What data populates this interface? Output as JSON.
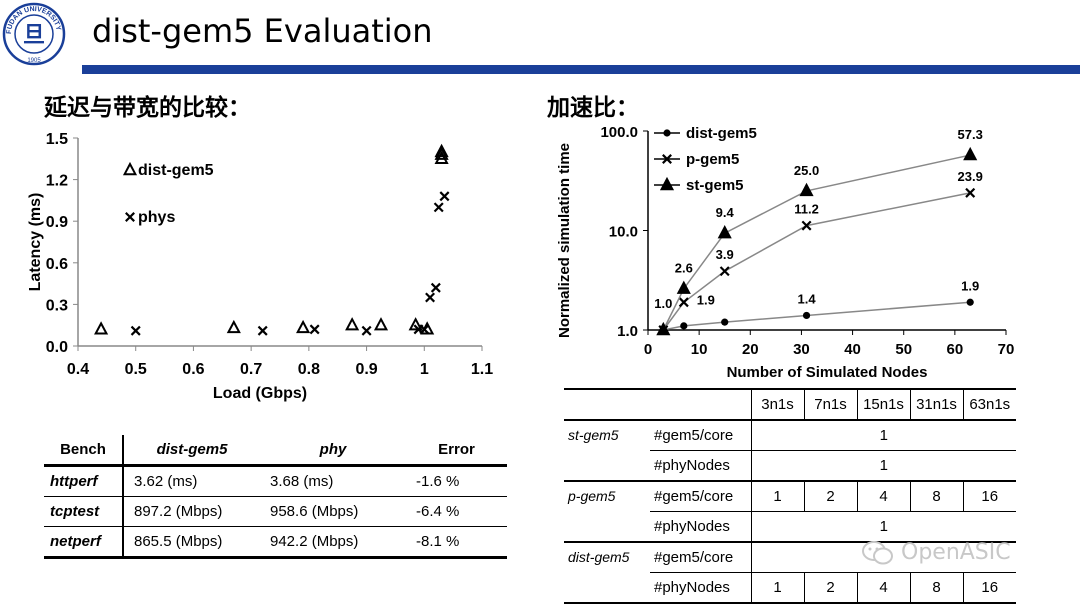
{
  "slide": {
    "title": "dist-gem5 Evaluation",
    "colors": {
      "title_bar": "#1a3f99",
      "logo": "#1a3f99"
    },
    "logo": {
      "icon": "university-seal-icon",
      "ring_text": "FUDAN UNIVERSITY",
      "year": "1905",
      "center": "旦"
    }
  },
  "latency_section": {
    "heading": "延迟与带宽的比较："
  },
  "speedup_section": {
    "heading": "加速比："
  },
  "chart_data": [
    {
      "type": "scatter",
      "xlabel": "Load (Gbps)",
      "ylabel": "Latency (ms)",
      "xlim": [
        0.4,
        1.1
      ],
      "ylim": [
        0.0,
        1.5
      ],
      "xticks": [
        "0.4",
        "0.5",
        "0.6",
        "0.7",
        "0.8",
        "0.9",
        "1",
        "1.1"
      ],
      "yticks": [
        "0.0",
        "0.3",
        "0.6",
        "0.9",
        "1.2",
        "1.5"
      ],
      "legend_placement": "top-left",
      "series": [
        {
          "name": "dist-gem5",
          "marker": "triangle",
          "points": [
            [
              0.44,
              0.12
            ],
            [
              0.67,
              0.13
            ],
            [
              0.79,
              0.13
            ],
            [
              0.875,
              0.15
            ],
            [
              0.925,
              0.15
            ],
            [
              0.985,
              0.15
            ],
            [
              1.005,
              0.12
            ],
            [
              1.03,
              1.35
            ],
            [
              1.03,
              1.38
            ],
            [
              1.03,
              1.4
            ]
          ]
        },
        {
          "name": "phys",
          "marker": "cross",
          "points": [
            [
              0.5,
              0.11
            ],
            [
              0.72,
              0.11
            ],
            [
              0.81,
              0.12
            ],
            [
              0.9,
              0.11
            ],
            [
              0.99,
              0.12
            ],
            [
              1.0,
              0.12
            ],
            [
              1.01,
              0.35
            ],
            [
              1.02,
              0.42
            ],
            [
              1.025,
              1.0
            ],
            [
              1.035,
              1.08
            ]
          ]
        }
      ]
    },
    {
      "type": "line",
      "scale_y": "log",
      "xlabel": "Number of Simulated Nodes",
      "ylabel": "Normalized simulation time",
      "xlim": [
        0,
        70
      ],
      "ylim": [
        1.0,
        100.0
      ],
      "xticks": [
        "0",
        "10",
        "20",
        "30",
        "40",
        "50",
        "60",
        "70"
      ],
      "ytick_values": [
        1,
        10,
        100
      ],
      "yticks": [
        "1.0",
        "10.0",
        "100.0"
      ],
      "legend_placement": "top-left",
      "x": [
        3,
        7,
        15,
        31,
        63
      ],
      "series": [
        {
          "name": "dist-gem5",
          "marker": "circle",
          "values": [
            1.0,
            1.1,
            1.2,
            1.4,
            1.9
          ],
          "labels": [
            "",
            "",
            "",
            "1.4",
            "1.9"
          ]
        },
        {
          "name": "p-gem5",
          "marker": "cross",
          "values": [
            1.0,
            1.9,
            3.9,
            11.2,
            23.9
          ],
          "labels": [
            "",
            "1.9",
            "3.9",
            "11.2",
            "23.9"
          ]
        },
        {
          "name": "st-gem5",
          "marker": "triangle",
          "values": [
            1.0,
            2.6,
            9.4,
            25.0,
            57.3
          ],
          "labels": [
            "1.0",
            "2.6",
            "9.4",
            "25.0",
            "57.3"
          ]
        }
      ]
    }
  ],
  "bench_table": {
    "headers": [
      "Bench",
      "dist-gem5",
      "phy",
      "Error"
    ],
    "rows": [
      [
        "httperf",
        "3.62 (ms)",
        "3.68 (ms)",
        "-1.6 %"
      ],
      [
        "tcptest",
        "897.2 (Mbps)",
        "958.6 (Mbps)",
        "-6.4 %"
      ],
      [
        "netperf",
        "865.5 (Mbps)",
        "942.2 (Mbps)",
        "-8.1 %"
      ]
    ]
  },
  "config_table": {
    "columns": [
      "3n1s",
      "7n1s",
      "15n1s",
      "31n1s",
      "63n1s"
    ],
    "st_gem5": {
      "name": "st-gem5",
      "gem5_core_label": "#gem5/core",
      "gem5_core_value": "1",
      "phy_nodes_label": "#phyNodes",
      "phy_nodes_value": "1"
    },
    "p_gem5": {
      "name": "p-gem5",
      "gem5_core_label": "#gem5/core",
      "gem5_core_values": [
        "1",
        "2",
        "4",
        "8",
        "16"
      ],
      "phy_nodes_label": "#phyNodes",
      "phy_nodes_value": "1"
    },
    "dist_gem5": {
      "name": "dist-gem5",
      "gem5_core_label": "#gem5/core",
      "gem5_core_value": "",
      "phy_nodes_label": "#phyNodes",
      "phy_nodes_values": [
        "1",
        "2",
        "4",
        "8",
        "16"
      ]
    }
  },
  "watermark": {
    "icon": "wechat-icon",
    "text": "OpenASIC"
  }
}
